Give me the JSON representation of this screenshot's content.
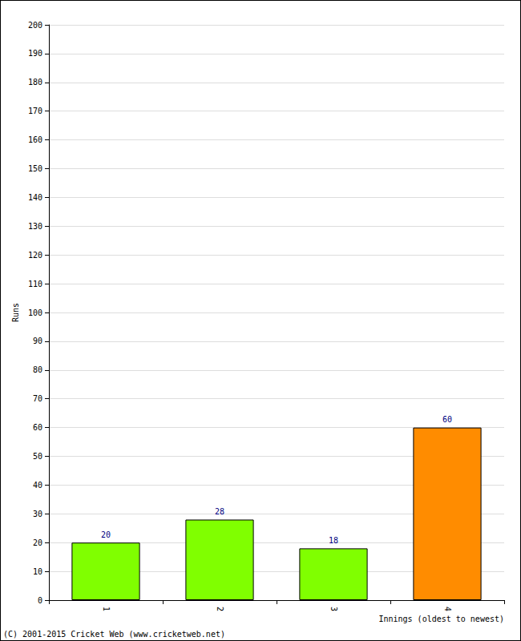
{
  "chart_data": {
    "type": "bar",
    "categories": [
      "1",
      "2",
      "3",
      "4"
    ],
    "values": [
      20,
      28,
      18,
      60
    ],
    "colors": [
      "#80ff00",
      "#80ff00",
      "#80ff00",
      "#ff8c00"
    ],
    "xlabel": "Innings (oldest to newest)",
    "ylabel": "Runs",
    "ylim": [
      0,
      200
    ],
    "yticks": [
      0,
      10,
      20,
      30,
      40,
      50,
      60,
      70,
      80,
      90,
      100,
      110,
      120,
      130,
      140,
      150,
      160,
      170,
      180,
      190,
      200
    ],
    "grid": true,
    "data_labels": true,
    "annotations": [
      "(C) 2001-2015 Cricket Web (www.cricketweb.net)"
    ]
  }
}
